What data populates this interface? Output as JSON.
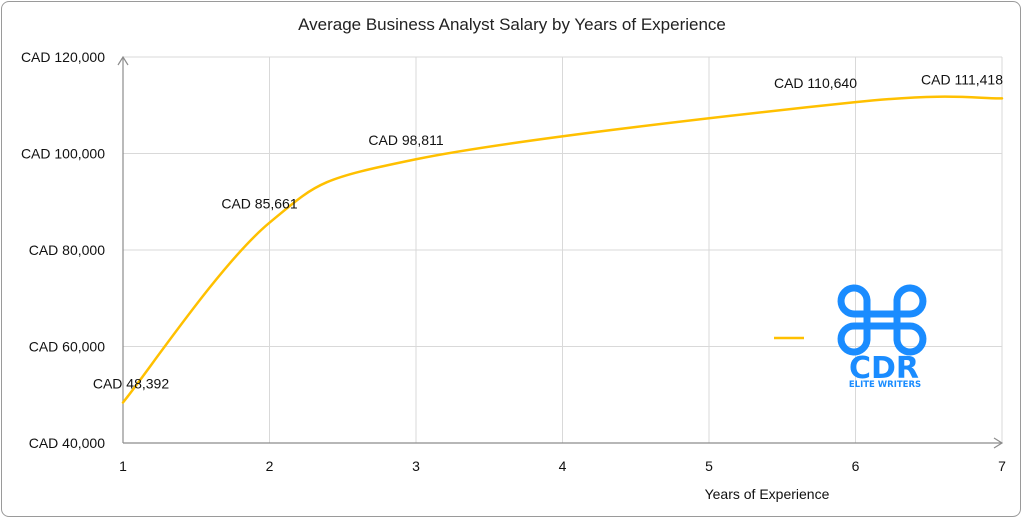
{
  "chart_data": {
    "type": "line",
    "title": "Average Business Analyst Salary by Years of Experience",
    "xlabel": "Years of Experience",
    "ylabel": "",
    "x": [
      1,
      2,
      3,
      6,
      7
    ],
    "values": [
      48392,
      85661,
      98811,
      110640,
      111418
    ],
    "data_labels": [
      "CAD 48,392",
      "CAD 85,661",
      "CAD 98,811",
      "CAD 110,640",
      "CAD 111,418"
    ],
    "x_ticks": [
      "1",
      "2",
      "3",
      "4",
      "5",
      "6",
      "7"
    ],
    "y_ticks": [
      "CAD 40,000",
      "CAD 60,000",
      "CAD 80,000",
      "CAD 100,000",
      "CAD 120,000"
    ],
    "xlim": [
      1,
      7
    ],
    "ylim": [
      40000,
      120000
    ],
    "grid": true,
    "smooth": true,
    "line_color": "#FFC000",
    "legend": {
      "position": "center-right",
      "series_name": ""
    }
  },
  "logo": {
    "text": "CDR",
    "subtext": "ELITE WRITERS",
    "color": "#1a8cff"
  }
}
